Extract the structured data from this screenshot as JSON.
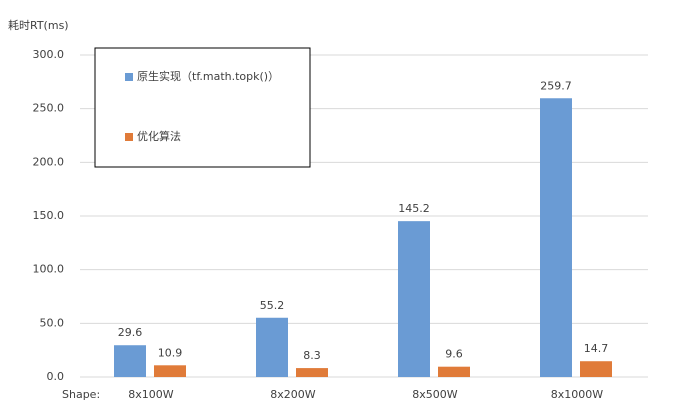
{
  "chart_data": {
    "type": "bar",
    "y_label": "耗时RT(ms)",
    "x_label": "Shape:",
    "categories": [
      "8x100W",
      "8x200W",
      "8x500W",
      "8x1000W"
    ],
    "series": [
      {
        "name": "原生实现（tf.math.topk()）",
        "color": "#6a9bd4",
        "values": [
          29.6,
          55.2,
          145.2,
          259.7
        ]
      },
      {
        "name": "优化算法",
        "color": "#e07b39",
        "values": [
          10.9,
          8.3,
          9.6,
          14.7
        ]
      }
    ],
    "ylim": [
      0,
      300
    ],
    "yticks": [
      {
        "value": 0,
        "label": "0.0"
      },
      {
        "value": 50,
        "label": "50.0"
      },
      {
        "value": 100,
        "label": "100.0"
      },
      {
        "value": 150,
        "label": "150.0"
      },
      {
        "value": 200,
        "label": "200.0"
      },
      {
        "value": 250,
        "label": "250.0"
      },
      {
        "value": 300,
        "label": "300.0"
      }
    ],
    "grid": true,
    "legend": "upper-left"
  }
}
